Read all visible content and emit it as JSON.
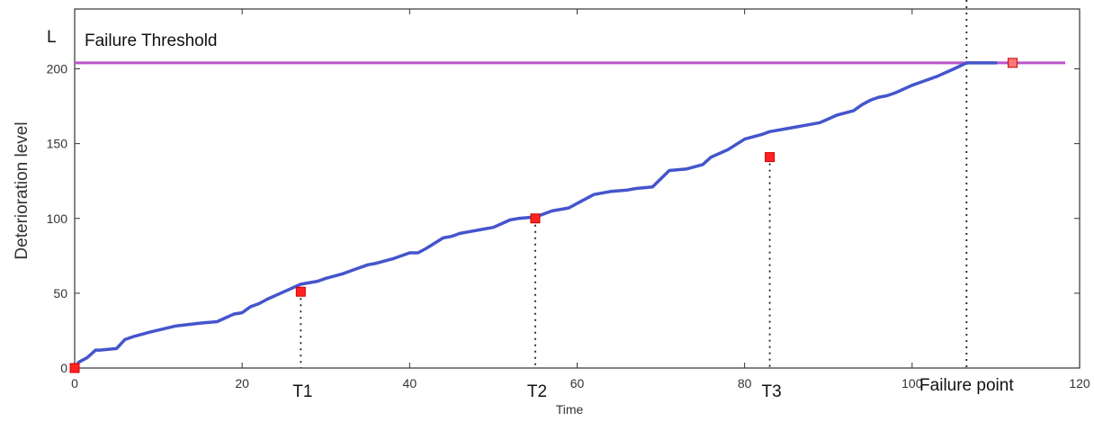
{
  "chart_data": {
    "type": "line",
    "xlabel": "Time",
    "ylabel": "Deterioration level",
    "xlim": [
      0,
      120
    ],
    "ylim": [
      0,
      240
    ],
    "xticks": [
      0,
      20,
      40,
      60,
      80,
      100,
      120
    ],
    "yticks": [
      0,
      50,
      100,
      150,
      200
    ],
    "grid": false,
    "threshold": {
      "label": "Failure Threshold",
      "symbol": "L",
      "value": 204,
      "color": "#bb55cc"
    },
    "series": [
      {
        "color": "#4455cc",
        "x": [
          0,
          0.5,
          1.5,
          2.5,
          3,
          5,
          6,
          7,
          9,
          12,
          15,
          17,
          19,
          20,
          21,
          22,
          23,
          25,
          27,
          29,
          30,
          32,
          33,
          35,
          36,
          38,
          40,
          41,
          42,
          44,
          45,
          46,
          47,
          48,
          50,
          52,
          53,
          55,
          56,
          57,
          59,
          60,
          62,
          64,
          66,
          67,
          69,
          71,
          73,
          75,
          76,
          78,
          80,
          82,
          83,
          85,
          87,
          89,
          91,
          93,
          94,
          95,
          96,
          97,
          98,
          100,
          101,
          103,
          105,
          106.5,
          110
        ],
        "y": [
          0,
          4,
          7,
          12,
          12,
          13,
          19,
          21,
          24,
          28,
          30,
          31,
          36,
          37,
          41,
          43,
          46,
          51,
          56,
          58,
          60,
          63,
          65,
          69,
          70,
          73,
          77,
          77,
          80,
          87,
          88,
          90,
          91,
          92,
          94,
          99,
          100,
          101,
          103,
          105,
          107,
          110,
          116,
          118,
          119,
          120,
          121,
          132,
          133,
          136,
          141,
          146,
          153,
          156,
          158,
          160,
          162,
          164,
          169,
          172,
          176,
          179,
          181,
          182,
          184,
          189,
          191,
          195,
          200,
          204,
          204
        ]
      }
    ],
    "markers": [
      {
        "x": 0,
        "y": 0,
        "label": ""
      },
      {
        "x": 27,
        "y": 51,
        "label": "T1"
      },
      {
        "x": 55,
        "y": 100,
        "label": "T2"
      },
      {
        "x": 83,
        "y": 141,
        "label": "T3"
      },
      {
        "x": 112,
        "y": 204,
        "label": ""
      }
    ],
    "failure_point": {
      "x": 106.5,
      "label": "Failure point"
    }
  }
}
